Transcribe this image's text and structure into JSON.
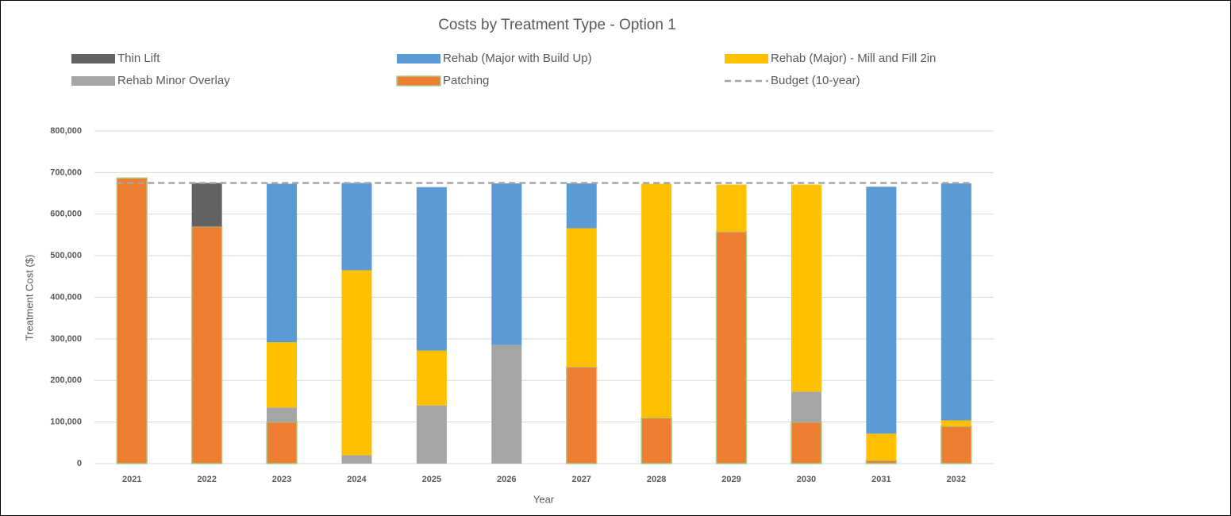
{
  "chart_data": {
    "type": "stacked_bar",
    "title": "Costs by Treatment Type - Option 1",
    "x_label": "Year",
    "y_label": "Treatment Cost ($)",
    "categories": [
      "2021",
      "2022",
      "2023",
      "2024",
      "2025",
      "2026",
      "2027",
      "2028",
      "2029",
      "2030",
      "2031",
      "2032"
    ],
    "series": [
      {
        "name": "Patching",
        "color": "#ed7d31",
        "values": [
          687000,
          570000,
          100000,
          0,
          0,
          0,
          233000,
          110000,
          558000,
          100000,
          8000,
          90000
        ]
      },
      {
        "name": "Rehab Minor Overlay",
        "color": "#a5a5a5",
        "values": [
          0,
          0,
          35000,
          20000,
          140000,
          285000,
          0,
          0,
          0,
          73000,
          0,
          0
        ]
      },
      {
        "name": "Rehab (Major) - Mill and Fill 2in",
        "color": "#ffc000",
        "values": [
          0,
          0,
          157000,
          445000,
          132000,
          0,
          333000,
          563000,
          113000,
          498000,
          64000,
          14000
        ]
      },
      {
        "name": "Rehab (Major with Build Up)",
        "color": "#5b9bd5",
        "values": [
          0,
          0,
          381000,
          210000,
          393000,
          389000,
          108000,
          0,
          0,
          0,
          594000,
          570000
        ]
      },
      {
        "name": "Thin Lift",
        "color": "#636363",
        "values": [
          0,
          105000,
          0,
          0,
          0,
          0,
          0,
          0,
          0,
          0,
          0,
          0
        ]
      },
      {
        "name": "Budget (10-year)",
        "color": "#a5a5a5",
        "type": "line",
        "dashed": true,
        "values": [
          675000,
          675000,
          675000,
          675000,
          675000,
          675000,
          675000,
          675000,
          675000,
          675000,
          675000,
          675000
        ]
      }
    ],
    "ylim": [
      0,
      800000
    ],
    "yticks": [
      0,
      {
        "value": 100000,
        "label": "100,000"
      },
      {
        "value": 200000,
        "label": "200,000"
      },
      {
        "value": 300000,
        "label": "300,000"
      },
      {
        "value": 400000,
        "label": "400,000"
      },
      {
        "value": 500000,
        "label": "500,000"
      },
      {
        "value": 600000,
        "label": "600,000"
      },
      {
        "value": 700000,
        "label": "700,000"
      },
      {
        "value": 800000,
        "label": "800,000"
      }
    ],
    "grid": true
  }
}
